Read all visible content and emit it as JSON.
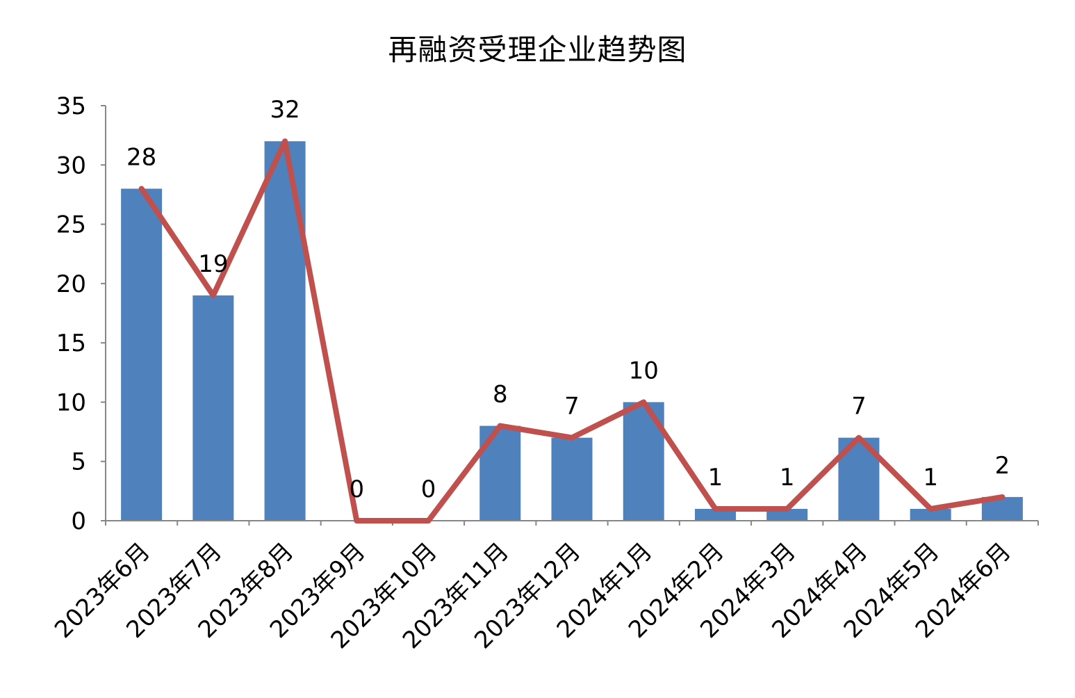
{
  "chart_data": {
    "type": "bar",
    "title": "再融资受理企业趋势图",
    "categories": [
      "2023年6月",
      "2023年7月",
      "2023年8月",
      "2023年9月",
      "2023年10月",
      "2023年11月",
      "2023年12月",
      "2024年1月",
      "2024年2月",
      "2024年3月",
      "2024年4月",
      "2024年5月",
      "2024年6月"
    ],
    "series": [
      {
        "type": "bar",
        "values": [
          28,
          19,
          32,
          0,
          0,
          8,
          7,
          10,
          1,
          1,
          7,
          1,
          2
        ],
        "color": "#4F81BD"
      },
      {
        "type": "line",
        "values": [
          28,
          19,
          32,
          0,
          0,
          8,
          7,
          10,
          1,
          1,
          7,
          1,
          2
        ],
        "color": "#C0504D"
      }
    ],
    "data_labels": [
      "28",
      "19",
      "32",
      "0",
      "0",
      "8",
      "7",
      "10",
      "1",
      "1",
      "7",
      "1",
      "2"
    ],
    "yticks": [
      "0",
      "5",
      "10",
      "15",
      "20",
      "25",
      "30",
      "35"
    ],
    "ylim": [
      0,
      35
    ],
    "xlabel": "",
    "ylabel": "",
    "grid": false,
    "legend": "none"
  }
}
